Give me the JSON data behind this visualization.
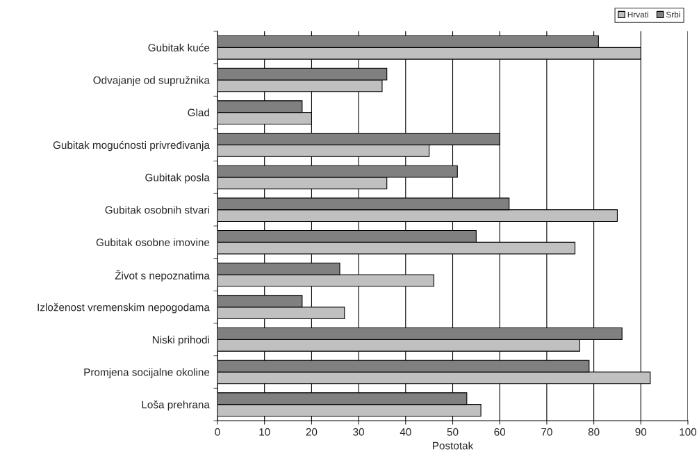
{
  "chart_data": {
    "type": "bar",
    "orientation": "horizontal",
    "xlabel": "Postotak",
    "categories": [
      "Gubitak kuće",
      "Odvajanje od supružnika",
      "Glad",
      "Gubitak mogućnosti privređivanja",
      "Gubitak posla",
      "Gubitak osobnih stvari",
      "Gubitak osobne imovine",
      "Život s nepoznatima",
      "Izloženost vremenskim nepogodama",
      "Niski prihodi",
      "Promjena socijalne okoline",
      "Loša prehrana"
    ],
    "series": [
      {
        "name": "Hrvati",
        "color": "#c0c0c0",
        "values": [
          90,
          35,
          20,
          45,
          36,
          85,
          76,
          46,
          27,
          77,
          92,
          56
        ]
      },
      {
        "name": "Srbi",
        "color": "#808080",
        "values": [
          81,
          36,
          18,
          60,
          51,
          62,
          55,
          26,
          18,
          86,
          79,
          53
        ]
      }
    ],
    "xlim": [
      0,
      100
    ],
    "xticks": [
      0,
      10,
      20,
      30,
      40,
      50,
      60,
      70,
      80,
      90,
      100
    ],
    "grid": "x",
    "legend": "top right"
  }
}
